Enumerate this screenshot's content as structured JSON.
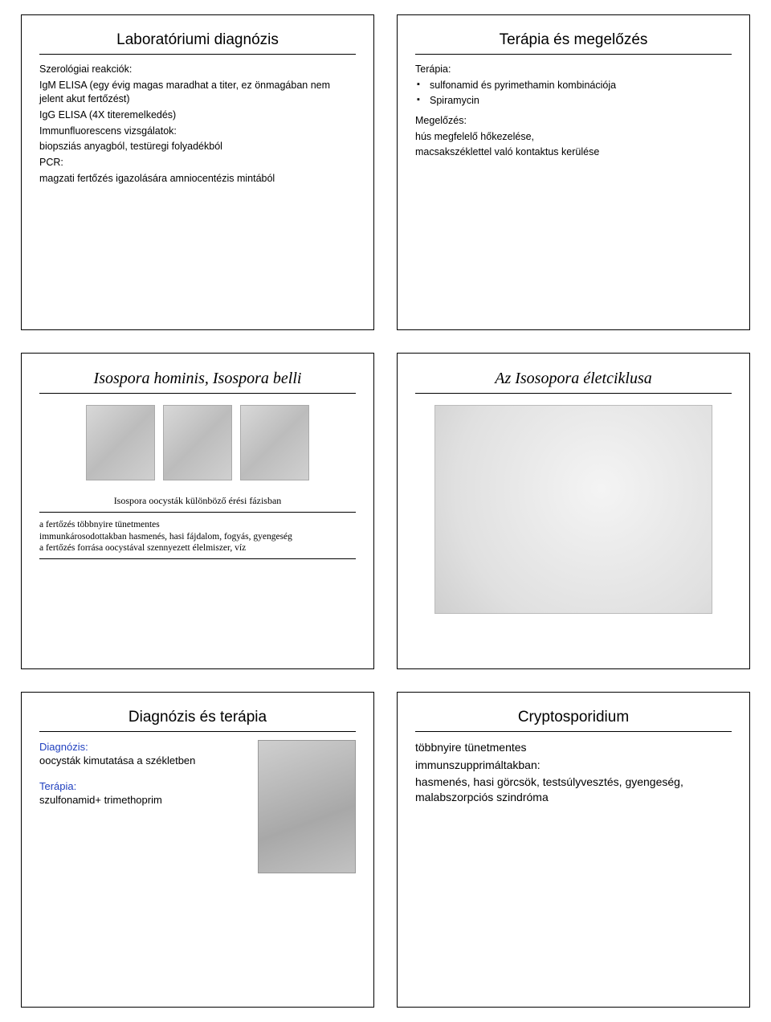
{
  "panels": {
    "p1": {
      "title": "Laboratóriumi diagnózis",
      "lines": {
        "l1": "Szerológiai reakciók:",
        "l2": "IgM ELISA (egy évig magas maradhat a titer, ez önmagában nem jelent akut fertőzést)",
        "l3": "IgG ELISA (4X titeremelkedés)",
        "l4": "Immunfluorescens vizsgálatok:",
        "l5": "biopsziás anyagból, testüregi folyadékból",
        "l6": "PCR:",
        "l7": "magzati fertőzés igazolására amniocentézis mintából"
      }
    },
    "p2": {
      "title": "Terápia és megelőzés",
      "therapy_label": "Terápia:",
      "therapy_items": {
        "a": "sulfonamid és pyrimethamin kombinációja",
        "b": "Spiramycin"
      },
      "prevent_label": "Megelőzés:",
      "prevent_1": "hús megfelelő hőkezelése,",
      "prevent_2": "macsakszéklettel való kontaktus kerülése"
    },
    "p3": {
      "title": "Isospora hominis, Isospora belli",
      "caption": "Isospora oocysták különböző érési fázisban",
      "note1": "a fertőzés többnyire tünetmentes",
      "note2": "immunkárosodottakban hasmenés, hasi fájdalom, fogyás, gyengeség",
      "note3": "a fertőzés forrása oocystával szennyezett élelmiszer, víz"
    },
    "p4": {
      "title": "Az Isosopora életciklusa"
    },
    "p5": {
      "title": "Diagnózis és terápia",
      "diag_label": "Diagnózis:",
      "diag_text": "oocysták kimutatása a székletben",
      "ther_label": "Terápia:",
      "ther_text": "szulfonamid+ trimethoprim"
    },
    "p6": {
      "title": "Cryptosporidium",
      "line1": "többnyire tünetmentes",
      "line2": "immunszupprimáltakban:",
      "line3": "hasmenés, hasi görcsök, testsúlyvesztés, gyengeség, malabszorpciós szindróma"
    }
  }
}
